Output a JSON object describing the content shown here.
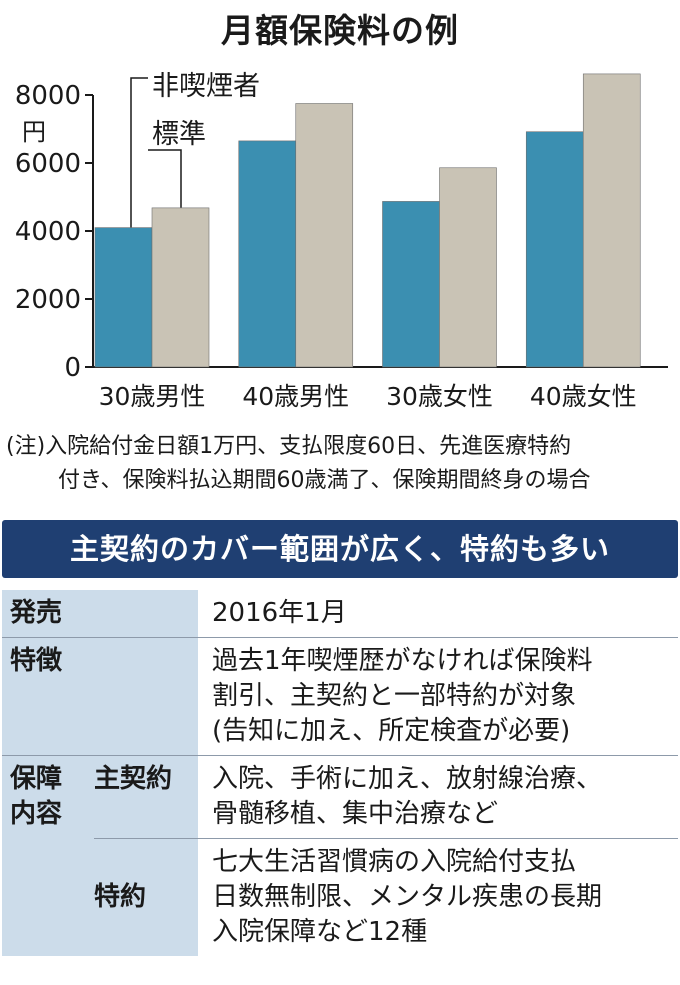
{
  "chart_data": {
    "type": "bar",
    "title": "月額保険料の例",
    "ylabel": "円",
    "ylim": [
      0,
      8000
    ],
    "yticks": [
      "8000",
      "6000",
      "4000",
      "2000",
      "0"
    ],
    "categories": [
      "30歳男性",
      "40歳男性",
      "30歳女性",
      "40歳女性"
    ],
    "series": [
      {
        "name": "非喫煙者",
        "values": [
          4100,
          6650,
          4870,
          6920
        ],
        "color": "#3b8fb1"
      },
      {
        "name": "標準",
        "values": [
          4680,
          7750,
          5860,
          8620
        ],
        "color": "#c9c3b5"
      }
    ],
    "grid": false,
    "legend": "top-left"
  },
  "note": {
    "line1": "(注)入院給付金日額1万円、支払限度60日、先進医療特約",
    "line2": "付き、保険料払込期間60歳満了、保険期間終身の場合"
  },
  "banner": "主契約のカバー範囲が広く、特約も多い",
  "table": {
    "release_label": "発売",
    "release_value": "2016年1月",
    "features_label": "特徴",
    "features_lines": [
      "過去1年喫煙歴がなければ保険料",
      "割引、主契約と一部特約が対象",
      "(告知に加え、所定検査が必要)"
    ],
    "coverage_label_1": "保障",
    "coverage_label_2": "内容",
    "main_label": "主契約",
    "main_lines": [
      "入院、手術に加え、放射線治療、",
      "骨髄移植、集中治療など"
    ],
    "rider_label": "特約",
    "rider_lines": [
      "七大生活習慣病の入院給付支払",
      "日数無制限、メンタル疾患の長期",
      "入院保障など12種"
    ]
  }
}
